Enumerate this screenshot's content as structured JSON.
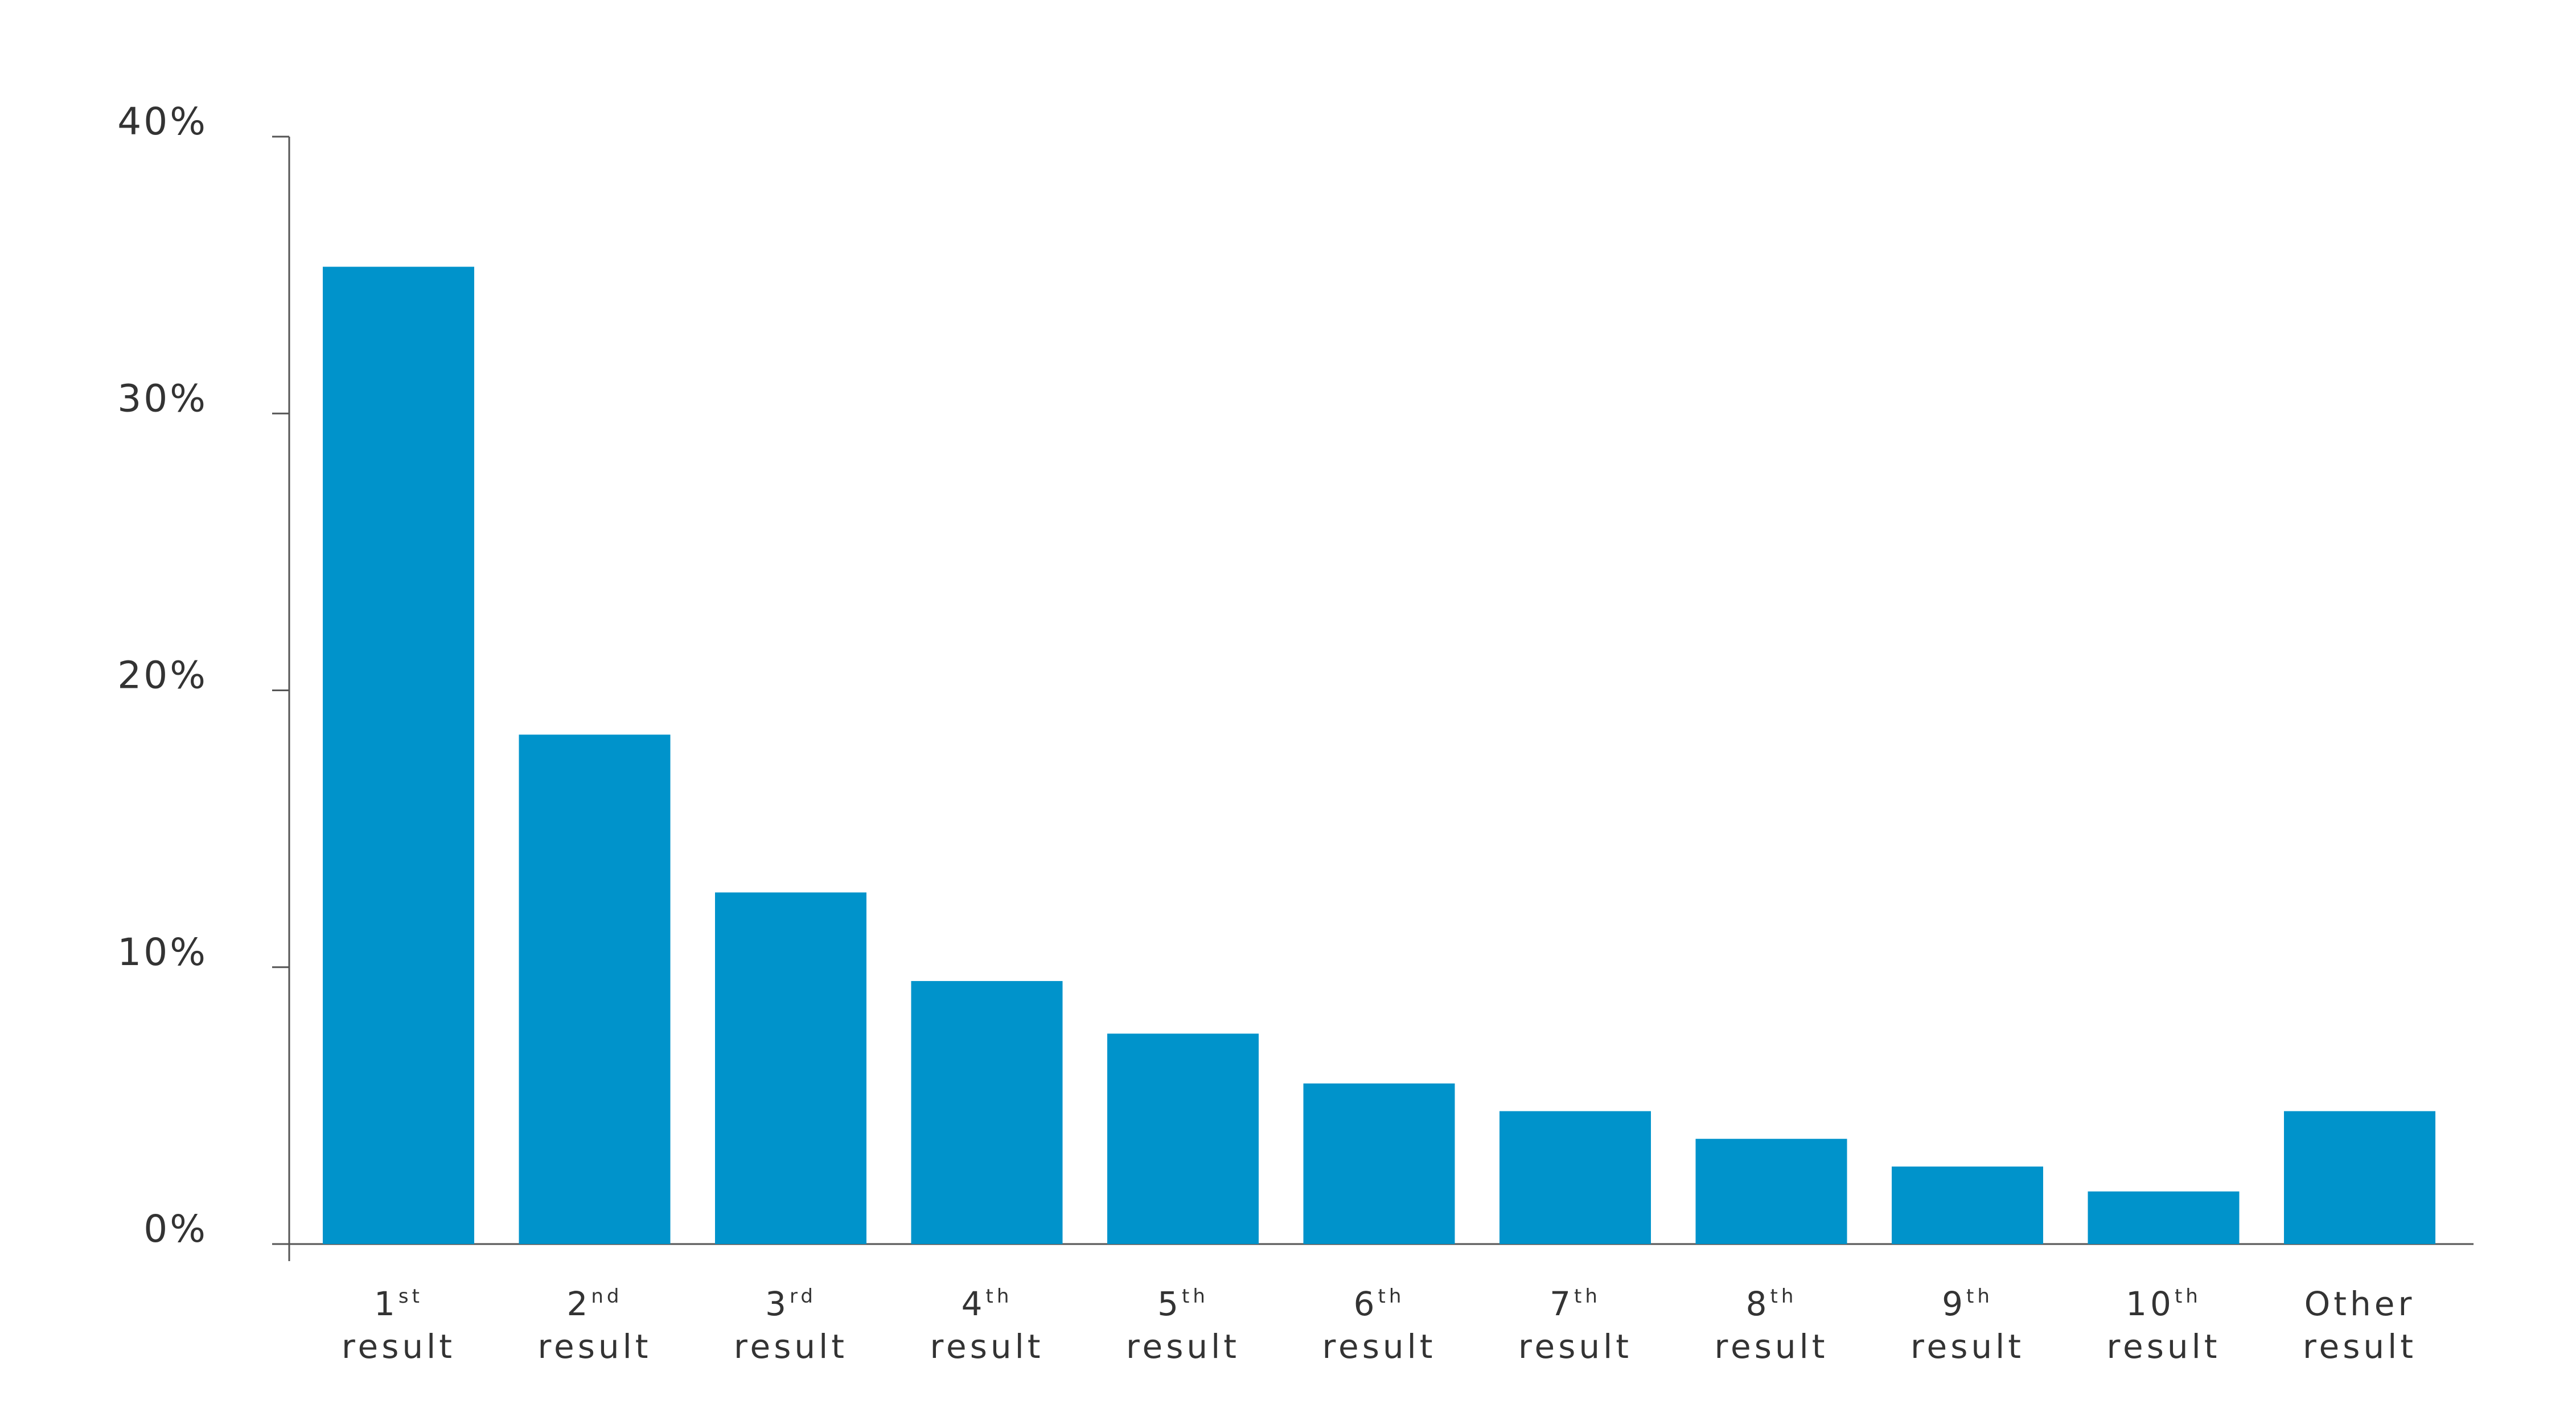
{
  "chart_data": {
    "type": "bar",
    "categories": [
      {
        "num": "1",
        "suffix": "st",
        "word": "result"
      },
      {
        "num": "2",
        "suffix": "nd",
        "word": "result"
      },
      {
        "num": "3",
        "suffix": "rd",
        "word": "result"
      },
      {
        "num": "4",
        "suffix": "th",
        "word": "result"
      },
      {
        "num": "5",
        "suffix": "th",
        "word": "result"
      },
      {
        "num": "6",
        "suffix": "th",
        "word": "result"
      },
      {
        "num": "7",
        "suffix": "th",
        "word": "result"
      },
      {
        "num": "8",
        "suffix": "th",
        "word": "result"
      },
      {
        "num": "9",
        "suffix": "th",
        "word": "result"
      },
      {
        "num": "10",
        "suffix": "th",
        "word": "result"
      },
      {
        "num": "Other",
        "suffix": "",
        "word": "result"
      }
    ],
    "values": [
      35.3,
      18.4,
      12.7,
      9.5,
      7.6,
      5.8,
      4.8,
      3.8,
      2.8,
      1.9,
      4.8
    ],
    "ylim": [
      0,
      40
    ],
    "yticks": [
      0,
      10,
      20,
      30,
      40
    ],
    "ytick_labels": [
      "0%",
      "10%",
      "20%",
      "30%",
      "40%"
    ],
    "grid": false,
    "title": "",
    "xlabel": "",
    "ylabel": "",
    "bar_color": "#0093CB",
    "axis_color": "#555555",
    "text_color": "#333333"
  }
}
